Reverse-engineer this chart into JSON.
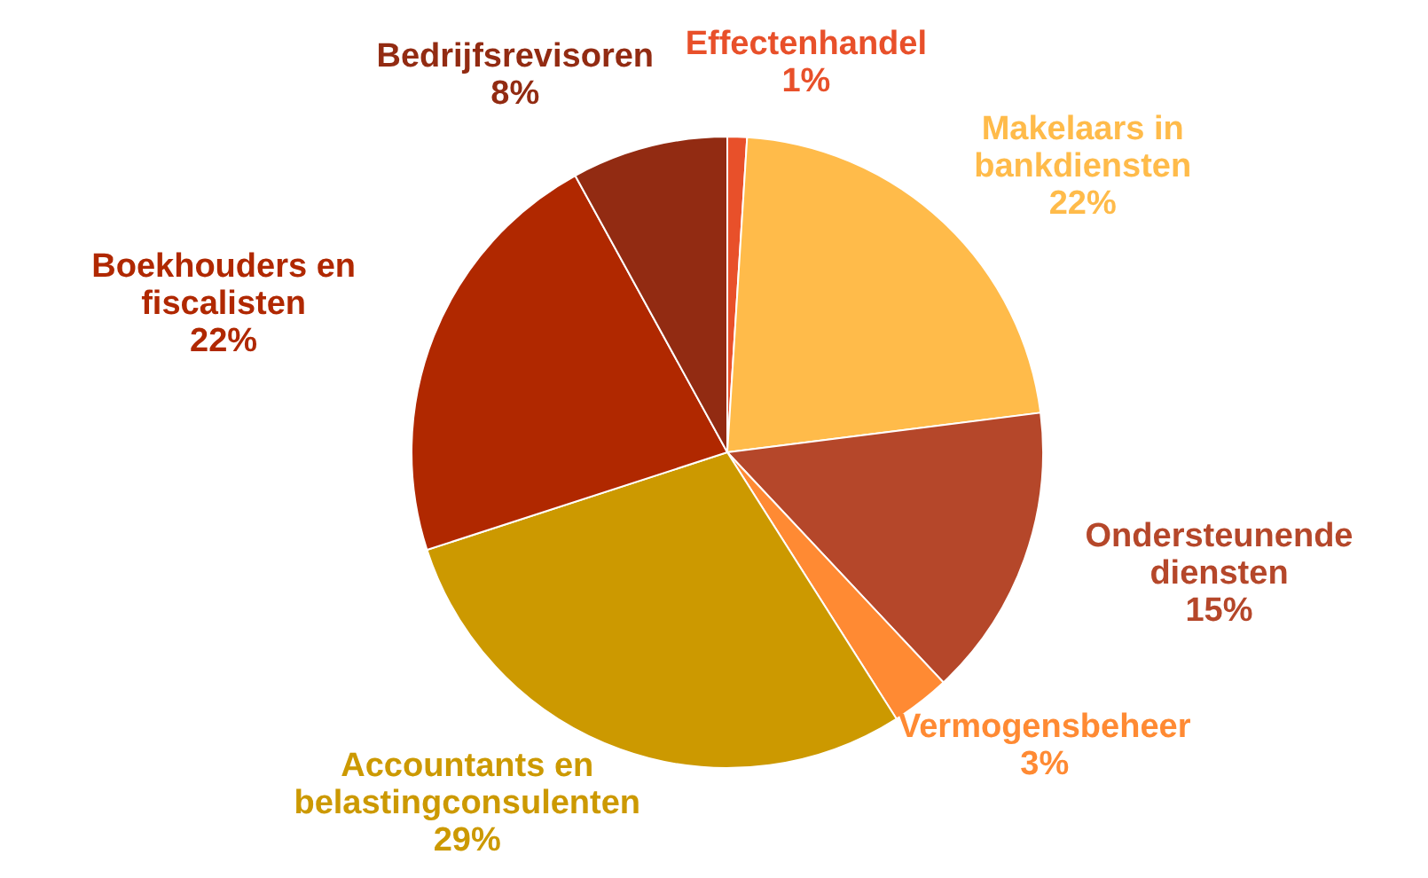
{
  "chart_data": {
    "type": "pie",
    "categories": [
      "Effectenhandel",
      "Makelaars in bankdiensten",
      "Ondersteunende diensten",
      "Vermogensbeheer",
      "Accountants en belastingconsulenten",
      "Boekhouders en fiscalisten",
      "Bedrijfsrevisoren"
    ],
    "values": [
      1,
      22,
      15,
      3,
      29,
      22,
      8
    ],
    "value_labels": [
      "1%",
      "22%",
      "15%",
      "3%",
      "29%",
      "22%",
      "8%"
    ],
    "colors": [
      "#e8502a",
      "#ffbb4a",
      "#b5472a",
      "#ff8a33",
      "#cc9900",
      "#b02800",
      "#922b12"
    ]
  }
}
